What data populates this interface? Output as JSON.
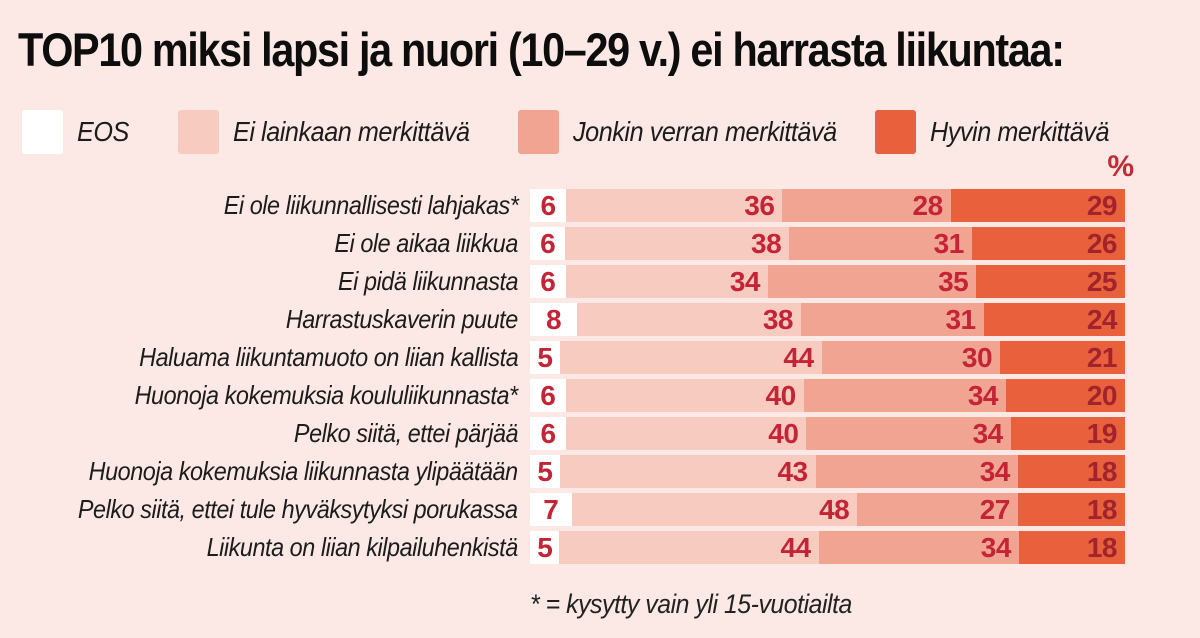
{
  "title": "TOP10 miksi lapsi ja nuori (10–29 v.) ei harrasta liikuntaa:",
  "colors": {
    "background": "#fce9e5",
    "value_text": "#c42435",
    "value_text_on_dark": "#a1242c",
    "percent_label": "#c22b35"
  },
  "percent_label": "%",
  "chart_data": {
    "type": "bar",
    "subtype": "horizontal-stacked-100",
    "title": "TOP10 miksi lapsi ja nuori (10–29 v.) ei harrasta liikuntaa:",
    "unit": "%",
    "legend_position": "top",
    "legend": [
      {
        "label": "EOS",
        "color": "#ffffff"
      },
      {
        "label": "Ei lainkaan merkittävä",
        "color": "#f7cbc0"
      },
      {
        "label": "Jonkin verran merkittävä",
        "color": "#f2a492"
      },
      {
        "label": "Hyvin merkittävä",
        "color": "#e9603c"
      }
    ],
    "categories": [
      "Ei ole liikunnallisesti lahjakas*",
      "Ei ole aikaa liikkua",
      "Ei pidä liikunnasta",
      "Harrastuskaverin puute",
      "Haluama liikuntamuoto on liian kallista",
      "Huonoja kokemuksia koululiikunnasta*",
      "Pelko siitä, ettei pärjää",
      "Huonoja kokemuksia liikunnasta ylipäätään",
      "Pelko siitä, ettei tule hyväksytyksi porukassa",
      "Liikunta on liian kilpailuhenkistä"
    ],
    "series": [
      {
        "name": "EOS",
        "values": [
          6,
          6,
          6,
          8,
          5,
          6,
          6,
          5,
          7,
          5
        ]
      },
      {
        "name": "Ei lainkaan merkittävä",
        "values": [
          36,
          38,
          34,
          38,
          44,
          40,
          40,
          43,
          48,
          44
        ]
      },
      {
        "name": "Jonkin verran merkittävä",
        "values": [
          28,
          31,
          35,
          31,
          30,
          34,
          34,
          34,
          27,
          34
        ]
      },
      {
        "name": "Hyvin merkittävä",
        "values": [
          29,
          26,
          25,
          24,
          21,
          20,
          19,
          18,
          18,
          18
        ]
      }
    ],
    "footnote": "* = kysytty vain yli 15-vuotiailta"
  }
}
